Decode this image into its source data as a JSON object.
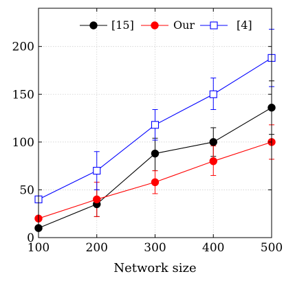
{
  "chart_data": {
    "type": "line",
    "title": "",
    "xlabel": "Network size",
    "ylabel": "",
    "x": [
      100,
      200,
      300,
      400,
      500
    ],
    "xlim": [
      100,
      500
    ],
    "ylim": [
      0,
      240
    ],
    "xticks": [
      "100",
      "200",
      "300",
      "400",
      "500"
    ],
    "yticks": [
      "0",
      "50",
      "100",
      "150",
      "200"
    ],
    "xtick_values": [
      100,
      200,
      300,
      400,
      500
    ],
    "ytick_values": [
      0,
      50,
      100,
      150,
      200
    ],
    "grid": true,
    "legend_position": "top-right",
    "series": [
      {
        "name": "[15]",
        "color": "#000000",
        "marker": "filled-circle",
        "values": [
          10,
          35,
          88,
          100,
          136
        ],
        "error_low": [
          10,
          22,
          70,
          85,
          108
        ],
        "error_high": [
          10,
          50,
          104,
          115,
          164
        ]
      },
      {
        "name": "Our",
        "color": "#ff0000",
        "marker": "filled-circle",
        "values": [
          20,
          40,
          58,
          80,
          100
        ],
        "error_low": [
          20,
          22,
          46,
          65,
          82
        ],
        "error_high": [
          20,
          58,
          70,
          96,
          118
        ]
      },
      {
        "name": "[4]",
        "color": "#0000ff",
        "marker": "open-square",
        "values": [
          40,
          70,
          118,
          150,
          188
        ],
        "error_low": [
          40,
          50,
          102,
          134,
          158
        ],
        "error_high": [
          40,
          90,
          134,
          167,
          218
        ]
      }
    ]
  }
}
